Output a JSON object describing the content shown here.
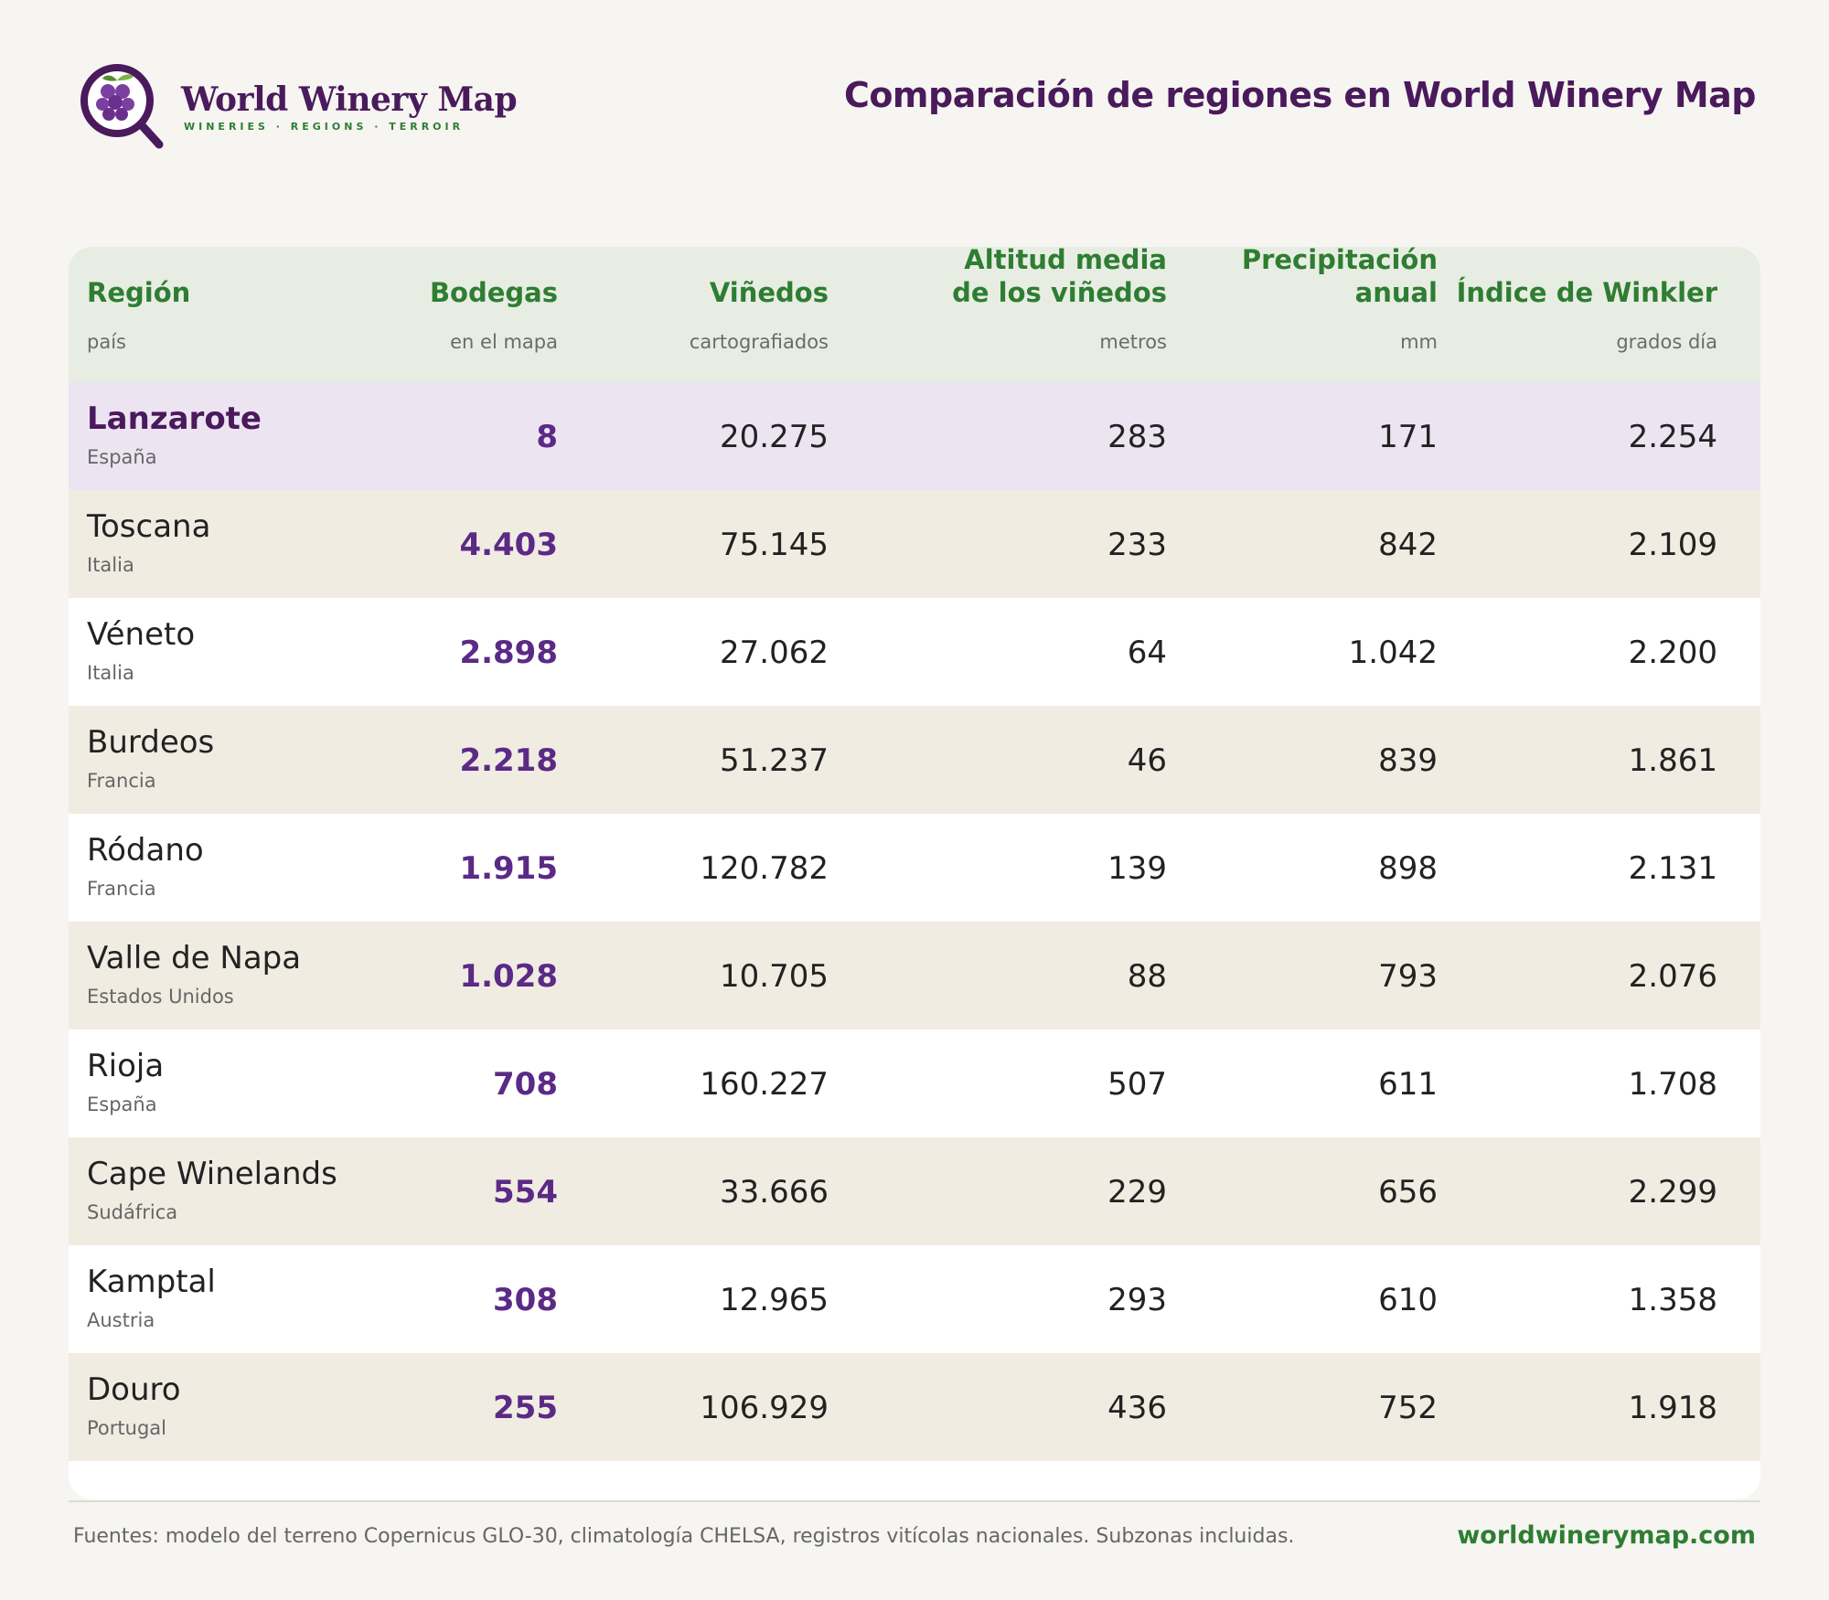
{
  "brand": {
    "name": "World Winery Map",
    "tagline": "WINERIES · REGIONS · TERROIR"
  },
  "page_title": "Comparación de regiones en World Winery Map",
  "columns": [
    {
      "label": "Región",
      "unit": "país"
    },
    {
      "label": "Bodegas",
      "unit": "en el mapa"
    },
    {
      "label": "Viñedos",
      "unit": "cartografiados"
    },
    {
      "label": "Altitud media de los viñedos",
      "label_line1": "Altitud media",
      "label_line2": "de los viñedos",
      "unit": "metros"
    },
    {
      "label": "Precipitación anual",
      "label_line1": "Precipitación",
      "label_line2": "anual",
      "unit": "mm"
    },
    {
      "label": "Índice de Winkler",
      "unit": "grados día"
    }
  ],
  "rows": [
    {
      "region": "Lanzarote",
      "country": "España",
      "bodegas": "8",
      "vinedos": "20.275",
      "altitud": "283",
      "precipitacion": "171",
      "winkler": "2.254",
      "highlight": true
    },
    {
      "region": "Toscana",
      "country": "Italia",
      "bodegas": "4.403",
      "vinedos": "75.145",
      "altitud": "233",
      "precipitacion": "842",
      "winkler": "2.109"
    },
    {
      "region": "Véneto",
      "country": "Italia",
      "bodegas": "2.898",
      "vinedos": "27.062",
      "altitud": "64",
      "precipitacion": "1.042",
      "winkler": "2.200"
    },
    {
      "region": "Burdeos",
      "country": "Francia",
      "bodegas": "2.218",
      "vinedos": "51.237",
      "altitud": "46",
      "precipitacion": "839",
      "winkler": "1.861"
    },
    {
      "region": "Ródano",
      "country": "Francia",
      "bodegas": "1.915",
      "vinedos": "120.782",
      "altitud": "139",
      "precipitacion": "898",
      "winkler": "2.131"
    },
    {
      "region": "Valle de Napa",
      "country": "Estados Unidos",
      "bodegas": "1.028",
      "vinedos": "10.705",
      "altitud": "88",
      "precipitacion": "793",
      "winkler": "2.076"
    },
    {
      "region": "Rioja",
      "country": "España",
      "bodegas": "708",
      "vinedos": "160.227",
      "altitud": "507",
      "precipitacion": "611",
      "winkler": "1.708"
    },
    {
      "region": "Cape Winelands",
      "country": "Sudáfrica",
      "bodegas": "554",
      "vinedos": "33.666",
      "altitud": "229",
      "precipitacion": "656",
      "winkler": "2.299"
    },
    {
      "region": "Kamptal",
      "country": "Austria",
      "bodegas": "308",
      "vinedos": "12.965",
      "altitud": "293",
      "precipitacion": "610",
      "winkler": "1.358"
    },
    {
      "region": "Douro",
      "country": "Portugal",
      "bodegas": "255",
      "vinedos": "106.929",
      "altitud": "436",
      "precipitacion": "752",
      "winkler": "1.918"
    }
  ],
  "footer": {
    "sources": "Fuentes: modelo del terreno Copernicus GLO-30, climatología CHELSA, registros vitícolas nacionales. Subzonas incluidas.",
    "url": "worldwinerymap.com"
  },
  "colors": {
    "brand_purple": "#4a1a5c",
    "accent_green": "#2e7d32",
    "highlight_row": "#ede4f2",
    "striped_row": "#f0ece2",
    "header_bg": "#e8ede3"
  }
}
